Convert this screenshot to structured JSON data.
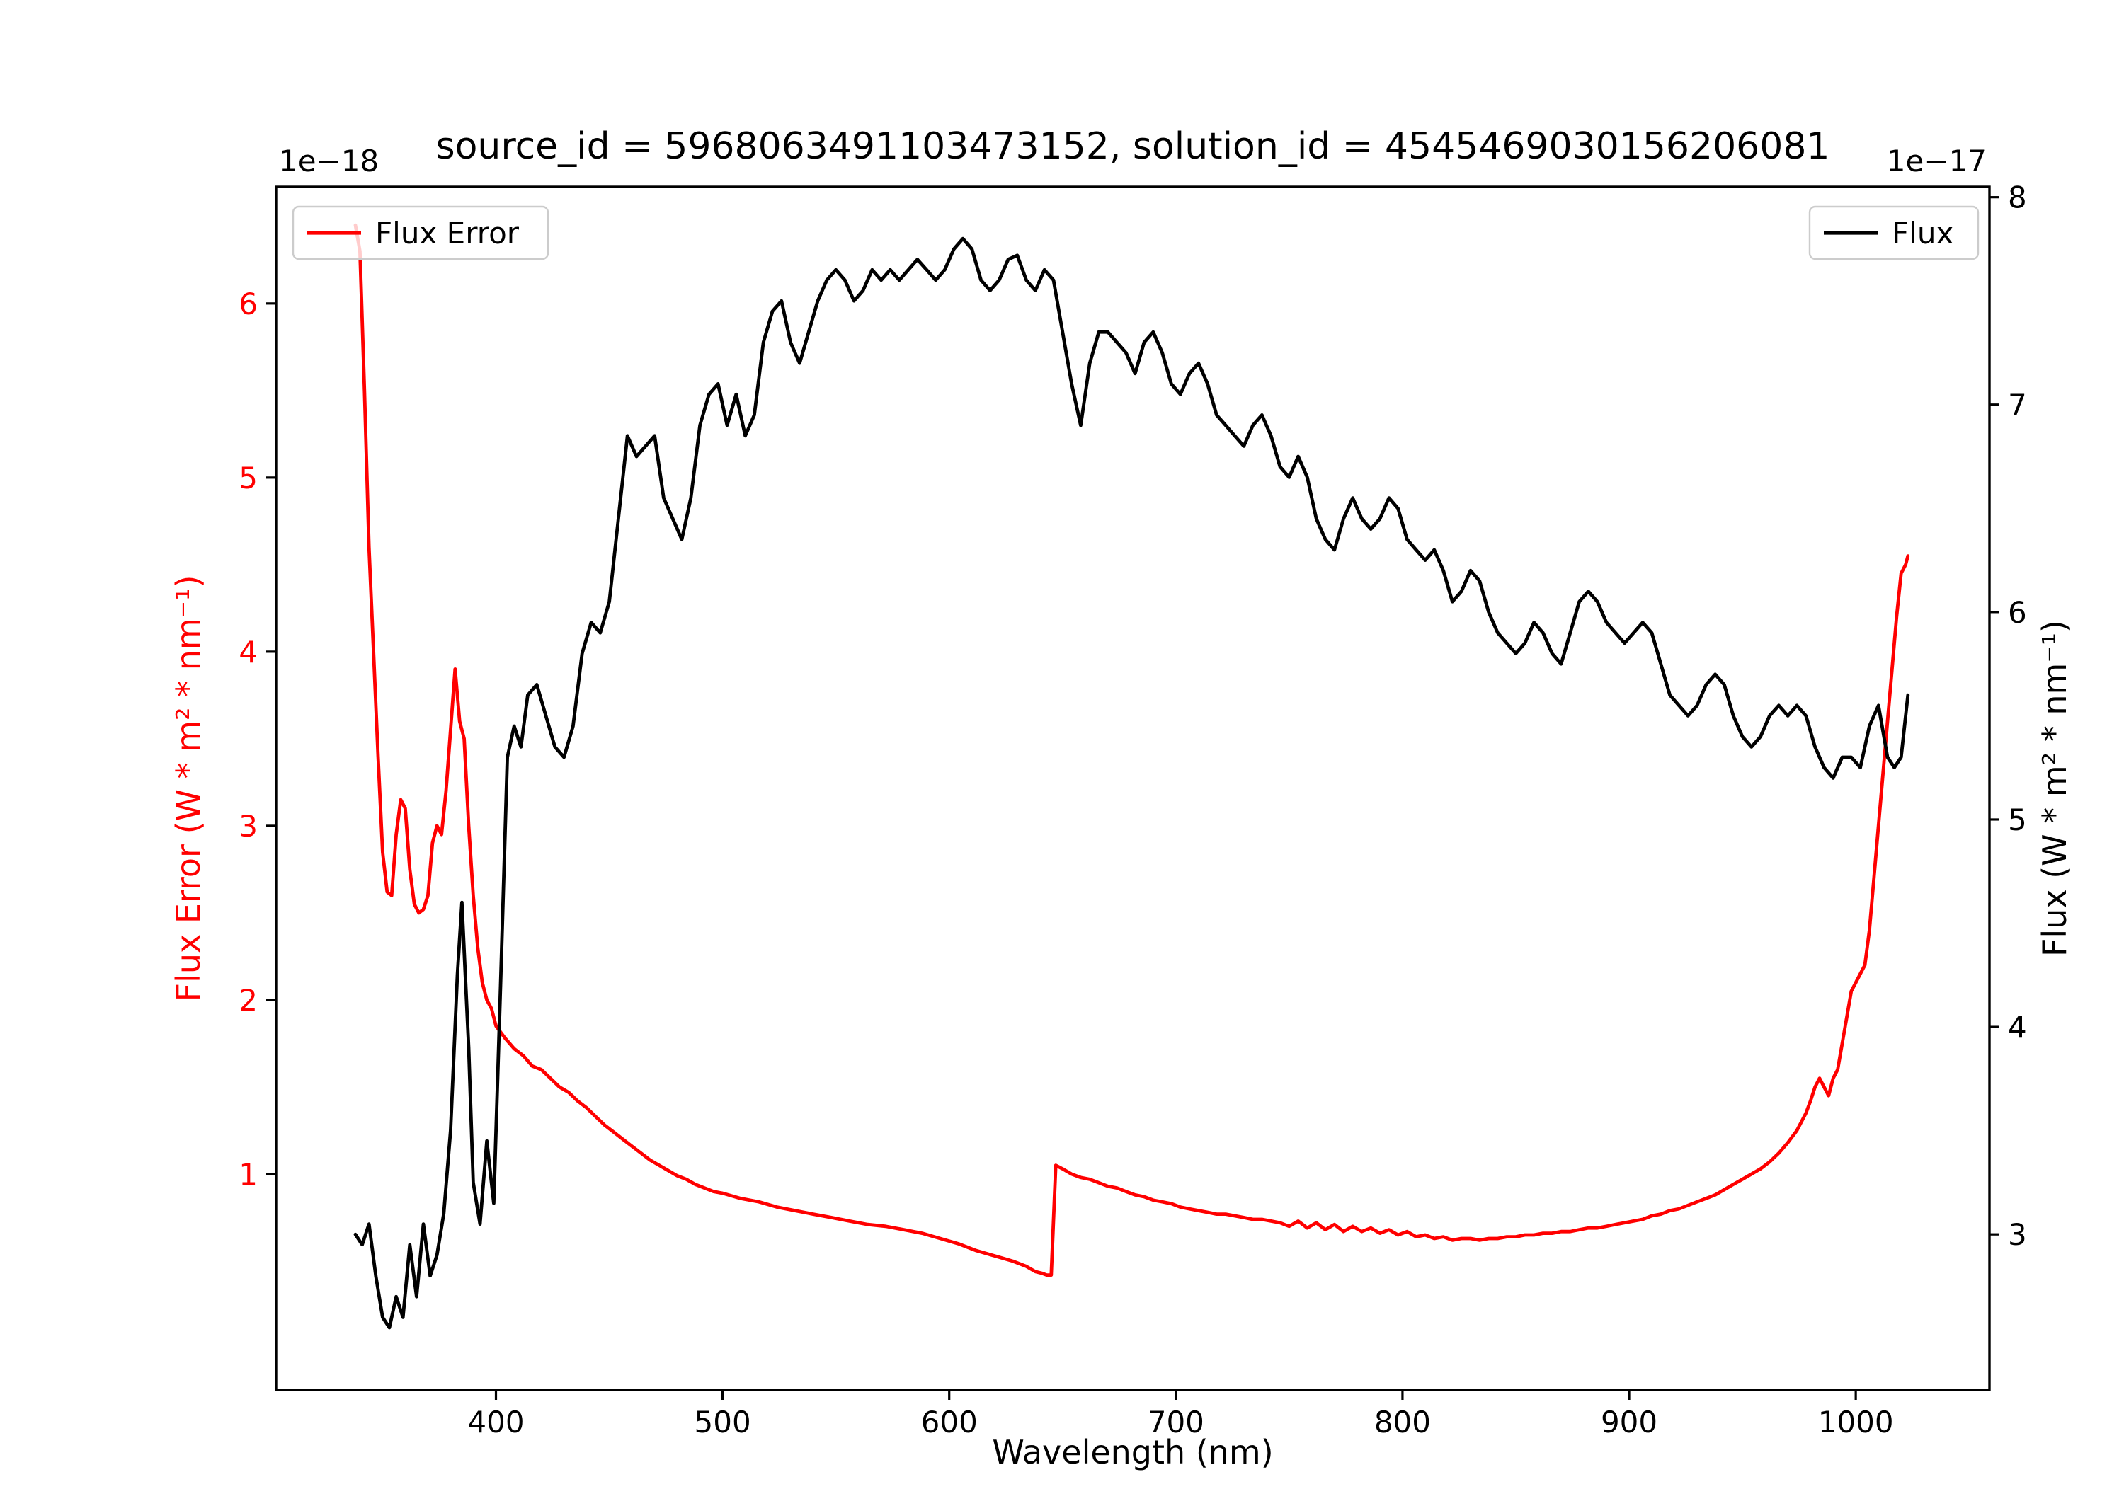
{
  "chart_data": {
    "type": "line",
    "title": "source_id = 5968063491103473152, solution_id = 4545469030156206081",
    "xlabel": "Wavelength (nm)",
    "xlim": [
      303,
      1059
    ],
    "x_ticks": [
      400,
      500,
      600,
      700,
      800,
      900,
      1000
    ],
    "grid": false,
    "legend_positions": {
      "flux_error": "upper left",
      "flux": "upper right"
    },
    "left_axis": {
      "label": "Flux Error (W * m² * nm⁻¹)",
      "offset_text": "1e−18",
      "color": "#ff0000",
      "ticks": [
        1,
        2,
        3,
        4,
        5,
        6
      ],
      "ylim": [
        -0.24,
        6.67
      ]
    },
    "right_axis": {
      "label": "Flux (W * m² * nm⁻¹)",
      "offset_text": "1e−17",
      "color": "#000000",
      "ticks": [
        3,
        4,
        5,
        6,
        7,
        8
      ],
      "ylim": [
        2.25,
        8.05
      ]
    },
    "series": [
      {
        "name": "Flux Error",
        "color": "#ff0000",
        "axis": "left",
        "unit_scale": "1e-18",
        "x": [
          338,
          340,
          342,
          344,
          346,
          348,
          350,
          352,
          354,
          356,
          358,
          360,
          362,
          364,
          366,
          368,
          370,
          372,
          374,
          376,
          378,
          380,
          382,
          384,
          386,
          388,
          390,
          392,
          394,
          396,
          398,
          400,
          404,
          408,
          412,
          416,
          420,
          424,
          428,
          432,
          436,
          440,
          444,
          448,
          452,
          456,
          460,
          464,
          468,
          472,
          476,
          480,
          484,
          488,
          492,
          496,
          500,
          508,
          516,
          524,
          532,
          540,
          548,
          556,
          564,
          572,
          580,
          588,
          596,
          604,
          612,
          620,
          628,
          634,
          638,
          641,
          643,
          645,
          647,
          650,
          654,
          658,
          662,
          666,
          670,
          674,
          678,
          682,
          686,
          690,
          694,
          698,
          702,
          706,
          710,
          714,
          718,
          722,
          726,
          730,
          734,
          738,
          742,
          746,
          750,
          754,
          758,
          762,
          766,
          770,
          774,
          778,
          782,
          786,
          790,
          794,
          798,
          802,
          806,
          810,
          814,
          818,
          822,
          826,
          830,
          834,
          838,
          842,
          846,
          850,
          854,
          858,
          862,
          866,
          870,
          874,
          878,
          882,
          886,
          890,
          894,
          898,
          902,
          906,
          910,
          914,
          918,
          922,
          926,
          930,
          934,
          938,
          942,
          946,
          950,
          954,
          958,
          962,
          966,
          970,
          974,
          978,
          980,
          982,
          984,
          986,
          988,
          990,
          992,
          994,
          996,
          998,
          1000,
          1002,
          1004,
          1006,
          1008,
          1010,
          1012,
          1014,
          1016,
          1018,
          1020,
          1022,
          1023
        ],
        "y": [
          6.45,
          6.3,
          5.5,
          4.6,
          4.0,
          3.4,
          2.85,
          2.62,
          2.6,
          2.95,
          3.15,
          3.1,
          2.75,
          2.55,
          2.5,
          2.52,
          2.6,
          2.9,
          3.0,
          2.95,
          3.2,
          3.55,
          3.9,
          3.6,
          3.5,
          3.0,
          2.6,
          2.3,
          2.1,
          2.0,
          1.95,
          1.85,
          1.78,
          1.72,
          1.68,
          1.62,
          1.6,
          1.55,
          1.5,
          1.47,
          1.42,
          1.38,
          1.33,
          1.28,
          1.24,
          1.2,
          1.16,
          1.12,
          1.08,
          1.05,
          1.02,
          0.99,
          0.97,
          0.94,
          0.92,
          0.9,
          0.89,
          0.86,
          0.84,
          0.81,
          0.79,
          0.77,
          0.75,
          0.73,
          0.71,
          0.7,
          0.68,
          0.66,
          0.63,
          0.6,
          0.56,
          0.53,
          0.5,
          0.47,
          0.44,
          0.43,
          0.42,
          0.42,
          1.05,
          1.03,
          1.0,
          0.98,
          0.97,
          0.95,
          0.93,
          0.92,
          0.9,
          0.88,
          0.87,
          0.85,
          0.84,
          0.83,
          0.81,
          0.8,
          0.79,
          0.78,
          0.77,
          0.77,
          0.76,
          0.75,
          0.74,
          0.74,
          0.73,
          0.72,
          0.7,
          0.73,
          0.69,
          0.72,
          0.68,
          0.71,
          0.67,
          0.7,
          0.67,
          0.69,
          0.66,
          0.68,
          0.65,
          0.67,
          0.64,
          0.65,
          0.63,
          0.64,
          0.62,
          0.63,
          0.63,
          0.62,
          0.63,
          0.63,
          0.64,
          0.64,
          0.65,
          0.65,
          0.66,
          0.66,
          0.67,
          0.67,
          0.68,
          0.69,
          0.69,
          0.7,
          0.71,
          0.72,
          0.73,
          0.74,
          0.76,
          0.77,
          0.79,
          0.8,
          0.82,
          0.84,
          0.86,
          0.88,
          0.91,
          0.94,
          0.97,
          1.0,
          1.03,
          1.07,
          1.12,
          1.18,
          1.25,
          1.35,
          1.42,
          1.5,
          1.55,
          1.5,
          1.45,
          1.55,
          1.6,
          1.75,
          1.9,
          2.05,
          2.1,
          2.15,
          2.2,
          2.4,
          2.7,
          3.0,
          3.3,
          3.6,
          3.9,
          4.2,
          4.45,
          4.5,
          4.55
        ]
      },
      {
        "name": "Flux",
        "color": "#000000",
        "axis": "right",
        "unit_scale": "1e-17",
        "x": [
          338,
          341,
          344,
          347,
          350,
          353,
          356,
          359,
          362,
          365,
          368,
          371,
          374,
          377,
          380,
          383,
          385,
          388,
          390,
          393,
          396,
          399,
          402,
          405,
          408,
          411,
          414,
          418,
          422,
          426,
          430,
          434,
          438,
          442,
          446,
          450,
          454,
          458,
          462,
          466,
          470,
          474,
          478,
          482,
          486,
          490,
          494,
          498,
          502,
          506,
          510,
          514,
          518,
          522,
          526,
          530,
          534,
          538,
          542,
          546,
          550,
          554,
          558,
          562,
          566,
          570,
          574,
          578,
          582,
          586,
          590,
          594,
          598,
          602,
          606,
          610,
          614,
          618,
          622,
          626,
          630,
          634,
          638,
          642,
          646,
          650,
          654,
          658,
          662,
          666,
          670,
          674,
          678,
          682,
          686,
          690,
          694,
          698,
          702,
          706,
          710,
          714,
          718,
          722,
          726,
          730,
          734,
          738,
          742,
          746,
          750,
          754,
          758,
          762,
          766,
          770,
          774,
          778,
          782,
          786,
          790,
          794,
          798,
          802,
          806,
          810,
          814,
          818,
          822,
          826,
          830,
          834,
          838,
          842,
          846,
          850,
          854,
          858,
          862,
          866,
          870,
          874,
          878,
          882,
          886,
          890,
          894,
          898,
          902,
          906,
          910,
          914,
          918,
          922,
          926,
          930,
          934,
          938,
          942,
          946,
          950,
          954,
          958,
          962,
          966,
          970,
          974,
          978,
          982,
          986,
          990,
          994,
          998,
          1002,
          1006,
          1010,
          1014,
          1017,
          1020,
          1023
        ],
        "y": [
          3.0,
          2.95,
          3.05,
          2.8,
          2.6,
          2.55,
          2.7,
          2.6,
          2.95,
          2.7,
          3.05,
          2.8,
          2.9,
          3.1,
          3.5,
          4.25,
          4.6,
          3.9,
          3.25,
          3.05,
          3.45,
          3.15,
          4.2,
          5.3,
          5.45,
          5.35,
          5.6,
          5.65,
          5.5,
          5.35,
          5.3,
          5.45,
          5.8,
          5.95,
          5.9,
          6.05,
          6.45,
          6.85,
          6.75,
          6.8,
          6.85,
          6.55,
          6.45,
          6.35,
          6.55,
          6.9,
          7.05,
          7.1,
          6.9,
          7.05,
          6.85,
          6.95,
          7.3,
          7.45,
          7.5,
          7.3,
          7.2,
          7.35,
          7.5,
          7.6,
          7.65,
          7.6,
          7.5,
          7.55,
          7.65,
          7.6,
          7.65,
          7.6,
          7.65,
          7.7,
          7.65,
          7.6,
          7.65,
          7.75,
          7.8,
          7.75,
          7.6,
          7.55,
          7.6,
          7.7,
          7.72,
          7.6,
          7.55,
          7.65,
          7.6,
          7.35,
          7.1,
          6.9,
          7.2,
          7.35,
          7.35,
          7.3,
          7.25,
          7.15,
          7.3,
          7.35,
          7.25,
          7.1,
          7.05,
          7.15,
          7.2,
          7.1,
          6.95,
          6.9,
          6.85,
          6.8,
          6.9,
          6.95,
          6.85,
          6.7,
          6.65,
          6.75,
          6.65,
          6.45,
          6.35,
          6.3,
          6.45,
          6.55,
          6.45,
          6.4,
          6.45,
          6.55,
          6.5,
          6.35,
          6.3,
          6.25,
          6.3,
          6.2,
          6.05,
          6.1,
          6.2,
          6.15,
          6.0,
          5.9,
          5.85,
          5.8,
          5.85,
          5.95,
          5.9,
          5.8,
          5.75,
          5.9,
          6.05,
          6.1,
          6.05,
          5.95,
          5.9,
          5.85,
          5.9,
          5.95,
          5.9,
          5.75,
          5.6,
          5.55,
          5.5,
          5.55,
          5.65,
          5.7,
          5.65,
          5.5,
          5.4,
          5.35,
          5.4,
          5.5,
          5.55,
          5.5,
          5.55,
          5.5,
          5.35,
          5.25,
          5.2,
          5.3,
          5.3,
          5.25,
          5.45,
          5.55,
          5.3,
          5.25,
          5.3,
          5.6
        ]
      }
    ]
  }
}
